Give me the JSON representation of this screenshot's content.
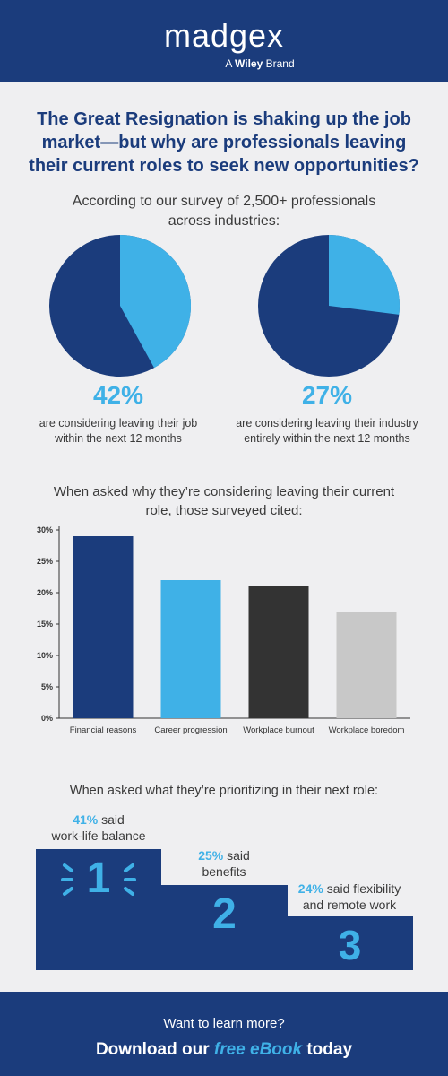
{
  "header": {
    "logo": "madgex",
    "tagline_prefix": "A",
    "tagline_brand": "Wiley",
    "tagline_suffix": "Brand"
  },
  "headline": "The Great Resignation is shaking up the job market—but why are professionals leaving their current roles to seek new opportunities?",
  "survey_intro": "According to our survey of 2,500+ professionals across industries:",
  "pies": [
    {
      "value_text": "42%",
      "value": 42,
      "caption_line1": "are considering leaving their job",
      "caption_line2": "within the next 12 months"
    },
    {
      "value_text": "27%",
      "value": 27,
      "caption_line1": "are considering leaving their industry",
      "caption_line2": "entirely within the next 12 months"
    }
  ],
  "reasons_intro": "When asked why they’re considering leaving their current role, those surveyed cited:",
  "chart_data": {
    "type": "bar",
    "categories": [
      "Financial reasons",
      "Career progression",
      "Workplace burnout",
      "Workplace boredom"
    ],
    "values": [
      29,
      22,
      21,
      17
    ],
    "ylim": [
      0,
      30
    ],
    "yticks": [
      "0%",
      "5%",
      "10%",
      "15%",
      "20%",
      "25%",
      "30%"
    ],
    "grid": false,
    "bar_colors": [
      "#1b3c7c",
      "#3fb1e7",
      "#333333",
      "#c8c8c8"
    ]
  },
  "priorities_intro": "When asked what they’re prioritizing in their next role:",
  "priorities": [
    {
      "rank": "1",
      "pct": "41%",
      "said": "said",
      "line2": "work-life balance"
    },
    {
      "rank": "2",
      "pct": "25%",
      "said": "said",
      "line2": "benefits"
    },
    {
      "rank": "3",
      "pct": "24%",
      "said": "said flexibility",
      "line2": "and remote work"
    }
  ],
  "footer": {
    "question": "Want to learn more?",
    "cta_prefix": "Download our",
    "cta_emphasis": "free eBook",
    "cta_suffix": "today"
  },
  "colors": {
    "navy": "#1b3c7c",
    "light_blue": "#3fb1e7",
    "background": "#efeff1"
  }
}
